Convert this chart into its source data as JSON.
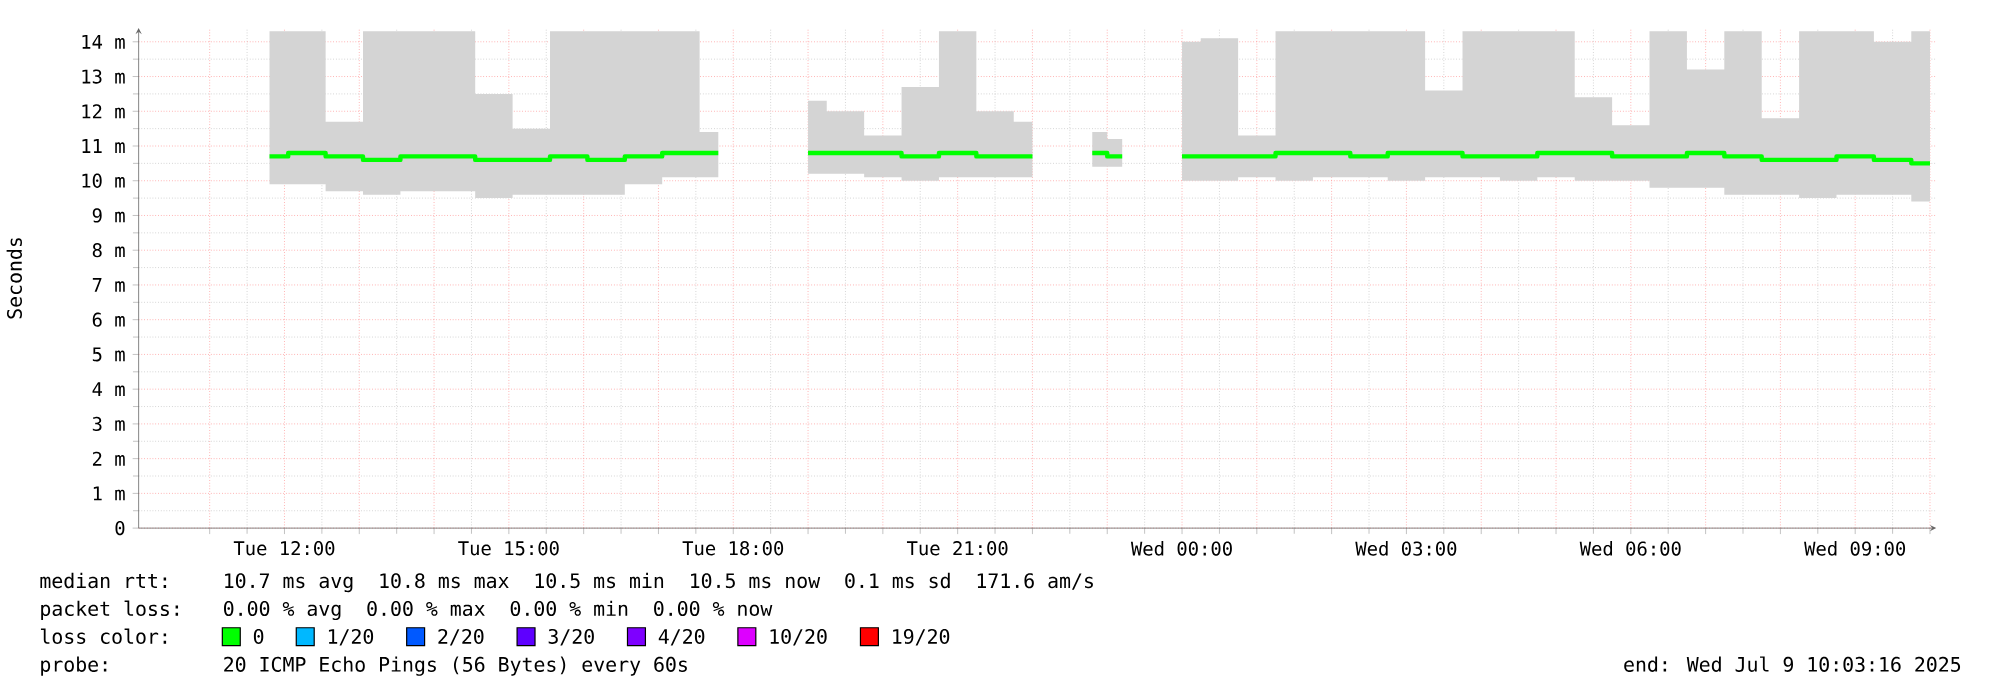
{
  "chart_data": {
    "type": "step",
    "ylabel": "Seconds",
    "xlim": [
      "2025-07-08T10:03",
      "2025-07-09T10:05"
    ],
    "ylim": [
      0,
      14.4
    ],
    "xticks": [
      {
        "value": "2025-07-08T11:00",
        "label": null
      },
      {
        "value": "2025-07-08T12:00",
        "label": "Tue 12:00"
      },
      {
        "value": "2025-07-08T13:00",
        "label": null
      },
      {
        "value": "2025-07-08T14:00",
        "label": null
      },
      {
        "value": "2025-07-08T15:00",
        "label": "Tue 15:00"
      },
      {
        "value": "2025-07-08T16:00",
        "label": null
      },
      {
        "value": "2025-07-08T17:00",
        "label": null
      },
      {
        "value": "2025-07-08T18:00",
        "label": "Tue 18:00"
      },
      {
        "value": "2025-07-08T19:00",
        "label": null
      },
      {
        "value": "2025-07-08T20:00",
        "label": null
      },
      {
        "value": "2025-07-08T21:00",
        "label": "Tue 21:00"
      },
      {
        "value": "2025-07-08T22:00",
        "label": null
      },
      {
        "value": "2025-07-08T23:00",
        "label": null
      },
      {
        "value": "2025-07-09T00:00",
        "label": "Wed 00:00"
      },
      {
        "value": "2025-07-09T01:00",
        "label": null
      },
      {
        "value": "2025-07-09T02:00",
        "label": null
      },
      {
        "value": "2025-07-09T03:00",
        "label": "Wed 03:00"
      },
      {
        "value": "2025-07-09T04:00",
        "label": null
      },
      {
        "value": "2025-07-09T05:00",
        "label": null
      },
      {
        "value": "2025-07-09T06:00",
        "label": "Wed 06:00"
      },
      {
        "value": "2025-07-09T07:00",
        "label": null
      },
      {
        "value": "2025-07-09T08:00",
        "label": null
      },
      {
        "value": "2025-07-09T09:00",
        "label": "Wed 09:00"
      },
      {
        "value": "2025-07-09T10:00",
        "label": null
      }
    ],
    "yticks": [
      0,
      {
        "value": 1,
        "label": "1 m"
      },
      {
        "value": 2,
        "label": "2 m"
      },
      {
        "value": 3,
        "label": "3 m"
      },
      {
        "value": 4,
        "label": "4 m"
      },
      {
        "value": 5,
        "label": "5 m"
      },
      {
        "value": 6,
        "label": "6 m"
      },
      {
        "value": 7,
        "label": "7 m"
      },
      {
        "value": 8,
        "label": "8 m"
      },
      {
        "value": 9,
        "label": "9 m"
      },
      {
        "value": 10,
        "label": "10 m"
      },
      {
        "value": 11,
        "label": "11 m"
      },
      {
        "value": 12,
        "label": "12 m"
      },
      {
        "value": 13,
        "label": "13 m"
      },
      {
        "value": 14,
        "label": "14 m"
      }
    ],
    "grid": true,
    "legend": "bottom",
    "legend_title": "loss color:",
    "series": [
      {
        "name": "0",
        "color": "#00ff00",
        "x": [
          "2025-07-08T11:48",
          "2025-07-08T12:18",
          "2025-07-08T12:48",
          "2025-07-08T13:18",
          "2025-07-08T13:48",
          "2025-07-08T14:18",
          "2025-07-08T14:48",
          "2025-07-08T15:18",
          "2025-07-08T15:48",
          "2025-07-08T16:18",
          "2025-07-08T16:48",
          "2025-07-08T17:18",
          "2025-07-08T17:48",
          "2025-07-08T18:24",
          "2025-07-08T19:00",
          "2025-07-08T19:30",
          "2025-07-08T20:00",
          "2025-07-08T20:30",
          "2025-07-08T21:00",
          "2025-07-08T21:30",
          "2025-07-08T22:00",
          "2025-07-08T22:24",
          "2025-07-08T22:48",
          "2025-07-08T23:12",
          "2025-07-08T23:36",
          "2025-07-09T00:00",
          "2025-07-09T00:30",
          "2025-07-09T01:00",
          "2025-07-09T01:30",
          "2025-07-09T02:00",
          "2025-07-09T02:30",
          "2025-07-09T03:00",
          "2025-07-09T03:30",
          "2025-07-09T04:00",
          "2025-07-09T04:30",
          "2025-07-09T05:00",
          "2025-07-09T05:30",
          "2025-07-09T06:00",
          "2025-07-09T06:30",
          "2025-07-09T07:00",
          "2025-07-09T07:30",
          "2025-07-09T08:00",
          "2025-07-09T08:30",
          "2025-07-09T09:00",
          "2025-07-09T09:30",
          "2025-07-09T10:00"
        ],
        "values": [
          10.7,
          10.8,
          10.7,
          10.6,
          10.7,
          10.7,
          10.6,
          10.6,
          10.7,
          10.6,
          10.7,
          10.8,
          10.8,
          null,
          10.8,
          10.8,
          10.8,
          10.7,
          10.8,
          10.7,
          10.7,
          null,
          10.8,
          10.7,
          null,
          10.7,
          10.7,
          10.7,
          10.8,
          10.8,
          10.7,
          10.8,
          10.8,
          10.7,
          10.7,
          10.8,
          10.8,
          10.7,
          10.7,
          10.8,
          10.7,
          10.6,
          10.6,
          10.7,
          10.6,
          10.5
        ],
        "lower": [
          9.9,
          9.9,
          9.7,
          9.6,
          9.7,
          9.7,
          9.5,
          9.6,
          9.6,
          9.6,
          9.9,
          10.1,
          10.1,
          null,
          10.2,
          10.2,
          10.1,
          10.0,
          10.1,
          10.1,
          10.1,
          null,
          10.4,
          10.4,
          null,
          10.0,
          10.0,
          10.1,
          10.0,
          10.1,
          10.1,
          10.0,
          10.1,
          10.1,
          10.0,
          10.1,
          10.0,
          10.0,
          9.8,
          9.8,
          9.6,
          9.6,
          9.5,
          9.6,
          9.6,
          9.4
        ],
        "upper": [
          14.3,
          14.3,
          11.7,
          14.3,
          14.3,
          14.3,
          12.5,
          11.5,
          14.3,
          14.3,
          14.3,
          14.3,
          11.4,
          null,
          12.3,
          12.0,
          11.3,
          12.7,
          14.3,
          12.0,
          11.7,
          null,
          11.4,
          11.2,
          null,
          14.0,
          14.1,
          11.3,
          14.3,
          14.3,
          14.3,
          14.3,
          12.6,
          14.3,
          14.3,
          14.3,
          12.4,
          11.6,
          14.3,
          13.2,
          14.3,
          11.8,
          14.3,
          14.3,
          14.0,
          14.3
        ]
      },
      {
        "name": "1/20",
        "color": "#00b8ff"
      },
      {
        "name": "2/20",
        "color": "#0059ff"
      },
      {
        "name": "3/20",
        "color": "#5e00ff"
      },
      {
        "name": "4/20",
        "color": "#7e00ff"
      },
      {
        "name": "10/20",
        "color": "#dd00ff"
      },
      {
        "name": "19/20",
        "color": "#ff0000"
      }
    ],
    "annotations": [
      "median rtt:",
      "10.7 ms avg",
      "10.8 ms max",
      "10.5 ms min",
      "10.5 ms now",
      "0.1 ms sd",
      "171.6   am/s",
      "packet loss:",
      "0.00 % avg",
      "0.00 % max",
      "0.00 % min",
      "0.00 % now",
      "probe:",
      "20 ICMP Echo Pings (56 Bytes) every 60s",
      "end: Wed Jul  9 10:03:16 2025"
    ]
  }
}
